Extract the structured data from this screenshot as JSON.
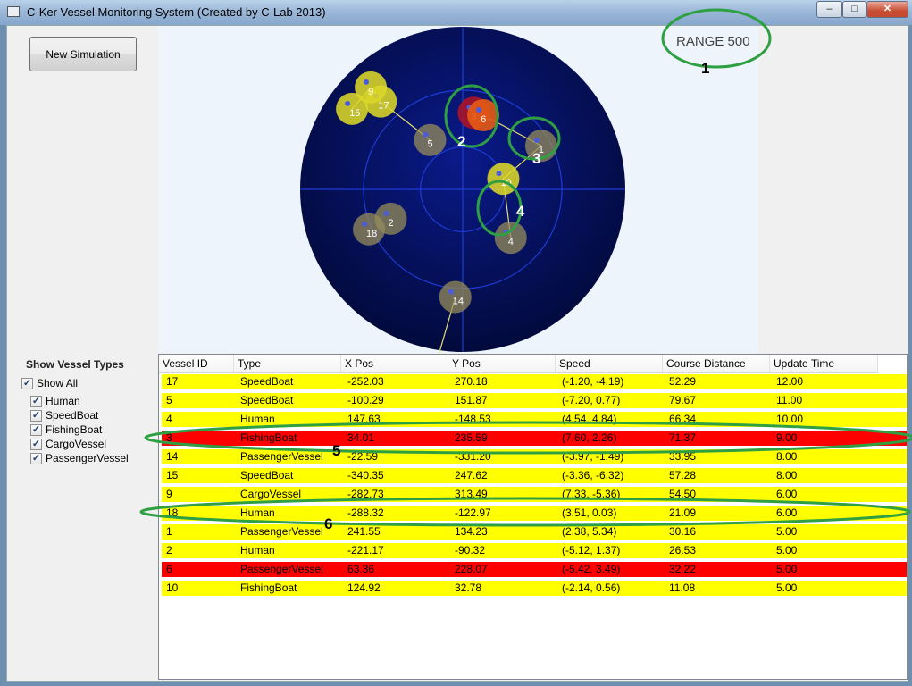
{
  "window": {
    "title": "C-Ker Vessel Monitoring System (Created by C-Lab 2013)",
    "controls": {
      "minimize": "–",
      "maximize": "□",
      "close": "✕"
    }
  },
  "toolbar": {
    "new_simulation_label": "New Simulation"
  },
  "radar": {
    "range_label": "RANGE  500",
    "vessels": [
      {
        "id": "17",
        "type": "SpeedBoat",
        "x": -252.03,
        "y": 270.18,
        "color": "yellow"
      },
      {
        "id": "5",
        "type": "SpeedBoat",
        "x": -100.29,
        "y": 151.87,
        "color": "gray"
      },
      {
        "id": "4",
        "type": "Human",
        "x": 147.63,
        "y": -148.53,
        "color": "gray"
      },
      {
        "id": "3",
        "type": "FishingBoat",
        "x": 34.01,
        "y": 235.59,
        "color": "red"
      },
      {
        "id": "14",
        "type": "PassengerVessel",
        "x": -22.59,
        "y": -331.2,
        "color": "gray"
      },
      {
        "id": "15",
        "type": "SpeedBoat",
        "x": -340.35,
        "y": 247.62,
        "color": "yellow"
      },
      {
        "id": "9",
        "type": "CargoVessel",
        "x": -282.73,
        "y": 313.49,
        "color": "yellow"
      },
      {
        "id": "18",
        "type": "Human",
        "x": -288.32,
        "y": -122.97,
        "color": "gray"
      },
      {
        "id": "1",
        "type": "PassengerVessel",
        "x": 241.55,
        "y": 134.23,
        "color": "gray"
      },
      {
        "id": "2",
        "type": "Human",
        "x": -221.17,
        "y": -90.32,
        "color": "gray"
      },
      {
        "id": "6",
        "type": "PassengerVessel",
        "x": 63.36,
        "y": 228.07,
        "color": "orange"
      },
      {
        "id": "10",
        "type": "FishingBoat",
        "x": 124.92,
        "y": 32.78,
        "color": "yellow"
      }
    ]
  },
  "filters": {
    "title": "Show Vessel Types",
    "show_all": {
      "label": "Show All",
      "checked": true
    },
    "types": [
      {
        "label": "Human",
        "checked": true
      },
      {
        "label": "SpeedBoat",
        "checked": true
      },
      {
        "label": "FishingBoat",
        "checked": true
      },
      {
        "label": "CargoVessel",
        "checked": true
      },
      {
        "label": "PassengerVessel",
        "checked": true
      }
    ]
  },
  "table": {
    "columns": [
      "Vessel ID",
      "Type",
      "X Pos",
      "Y Pos",
      "Speed",
      "Course Distance",
      "Update Time"
    ],
    "rows": [
      {
        "id": "17",
        "type": "SpeedBoat",
        "x": "-252.03",
        "y": "270.18",
        "speed": "(-1.20, -4.19)",
        "dist": "52.29",
        "time": "12.00",
        "status": "warning"
      },
      {
        "id": "5",
        "type": "SpeedBoat",
        "x": "-100.29",
        "y": "151.87",
        "speed": "(-7.20, 0.77)",
        "dist": "79.67",
        "time": "11.00",
        "status": "warning"
      },
      {
        "id": "4",
        "type": "Human",
        "x": "147.63",
        "y": "-148.53",
        "speed": "(4.54, 4.84)",
        "dist": "66.34",
        "time": "10.00",
        "status": "warning"
      },
      {
        "id": "3",
        "type": "FishingBoat",
        "x": "34.01",
        "y": "235.59",
        "speed": "(7.60, 2.26)",
        "dist": "71.37",
        "time": "9.00",
        "status": "danger"
      },
      {
        "id": "14",
        "type": "PassengerVessel",
        "x": "-22.59",
        "y": "-331.20",
        "speed": "(-3.97, -1.49)",
        "dist": "33.95",
        "time": "8.00",
        "status": "warning"
      },
      {
        "id": "15",
        "type": "SpeedBoat",
        "x": "-340.35",
        "y": "247.62",
        "speed": "(-3.36, -6.32)",
        "dist": "57.28",
        "time": "8.00",
        "status": "warning"
      },
      {
        "id": "9",
        "type": "CargoVessel",
        "x": "-282.73",
        "y": "313.49",
        "speed": "(7.33, -5.36)",
        "dist": "54.50",
        "time": "6.00",
        "status": "warning"
      },
      {
        "id": "18",
        "type": "Human",
        "x": "-288.32",
        "y": "-122.97",
        "speed": "(3.51, 0.03)",
        "dist": "21.09",
        "time": "6.00",
        "status": "warning"
      },
      {
        "id": "1",
        "type": "PassengerVessel",
        "x": "241.55",
        "y": "134.23",
        "speed": "(2.38, 5.34)",
        "dist": "30.16",
        "time": "5.00",
        "status": "warning"
      },
      {
        "id": "2",
        "type": "Human",
        "x": "-221.17",
        "y": "-90.32",
        "speed": "(-5.12, 1.37)",
        "dist": "26.53",
        "time": "5.00",
        "status": "warning"
      },
      {
        "id": "6",
        "type": "PassengerVessel",
        "x": "63.36",
        "y": "228.07",
        "speed": "(-5.42, 3.49)",
        "dist": "32.22",
        "time": "5.00",
        "status": "danger"
      },
      {
        "id": "10",
        "type": "FishingBoat",
        "x": "124.92",
        "y": "32.78",
        "speed": "(-2.14, 0.56)",
        "dist": "11.08",
        "time": "5.00",
        "status": "warning"
      }
    ]
  },
  "status_colors": {
    "warning": "#ffff00",
    "danger": "#ff0000"
  },
  "annotations": [
    "1",
    "2",
    "3",
    "4",
    "5",
    "6"
  ]
}
